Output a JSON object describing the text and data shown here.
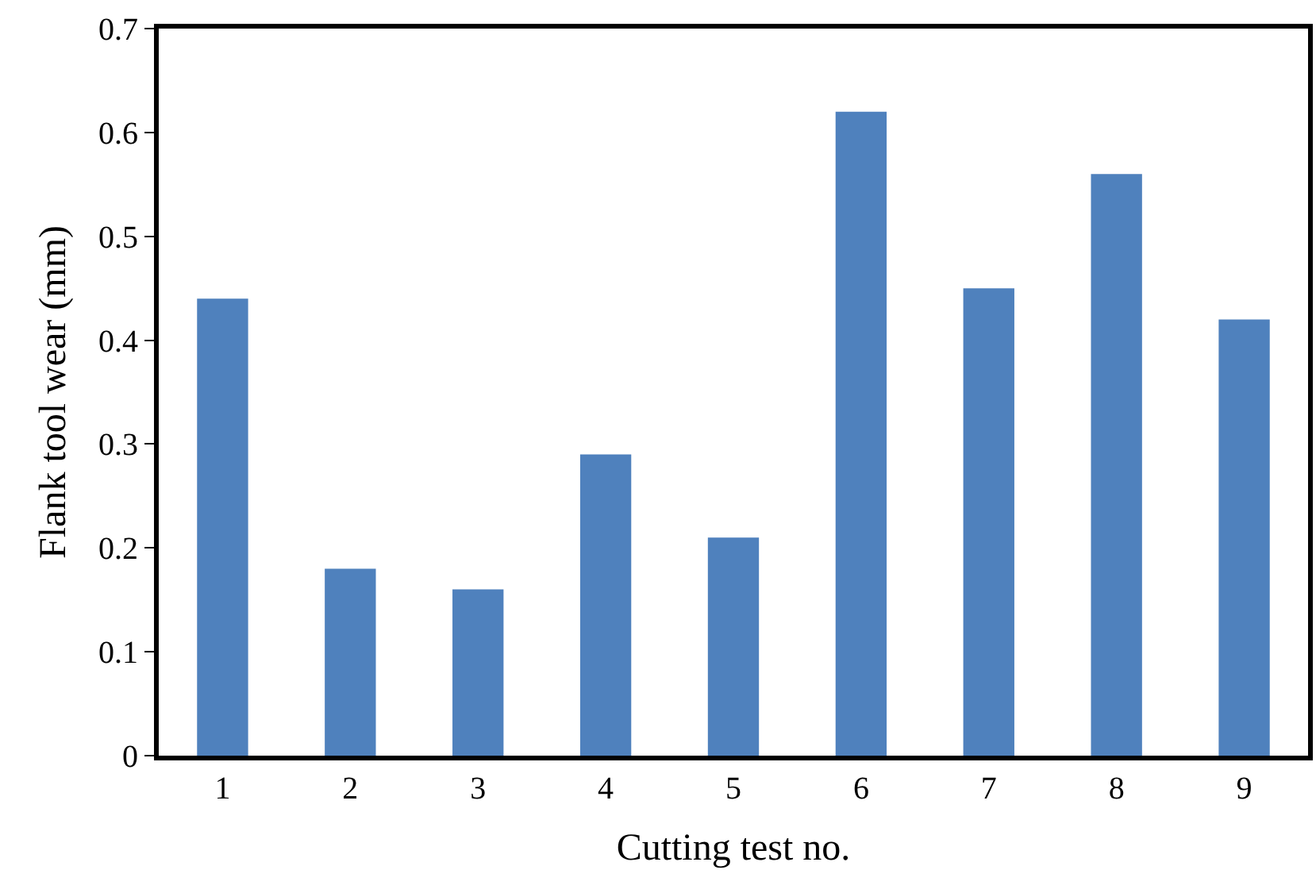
{
  "chart_data": {
    "type": "bar",
    "xlabel": "Cutting test no.",
    "ylabel": "Flank tool wear (mm)",
    "categories": [
      "1",
      "2",
      "3",
      "4",
      "5",
      "6",
      "7",
      "8",
      "9"
    ],
    "values": [
      0.44,
      0.18,
      0.16,
      0.29,
      0.21,
      0.62,
      0.45,
      0.56,
      0.42
    ],
    "color": "#4f81bd",
    "ylim": [
      0,
      0.7
    ],
    "yticks": [
      0,
      0.1,
      0.2,
      0.3,
      0.4,
      0.5,
      0.6,
      0.7
    ],
    "grid": false,
    "legend": false
  }
}
